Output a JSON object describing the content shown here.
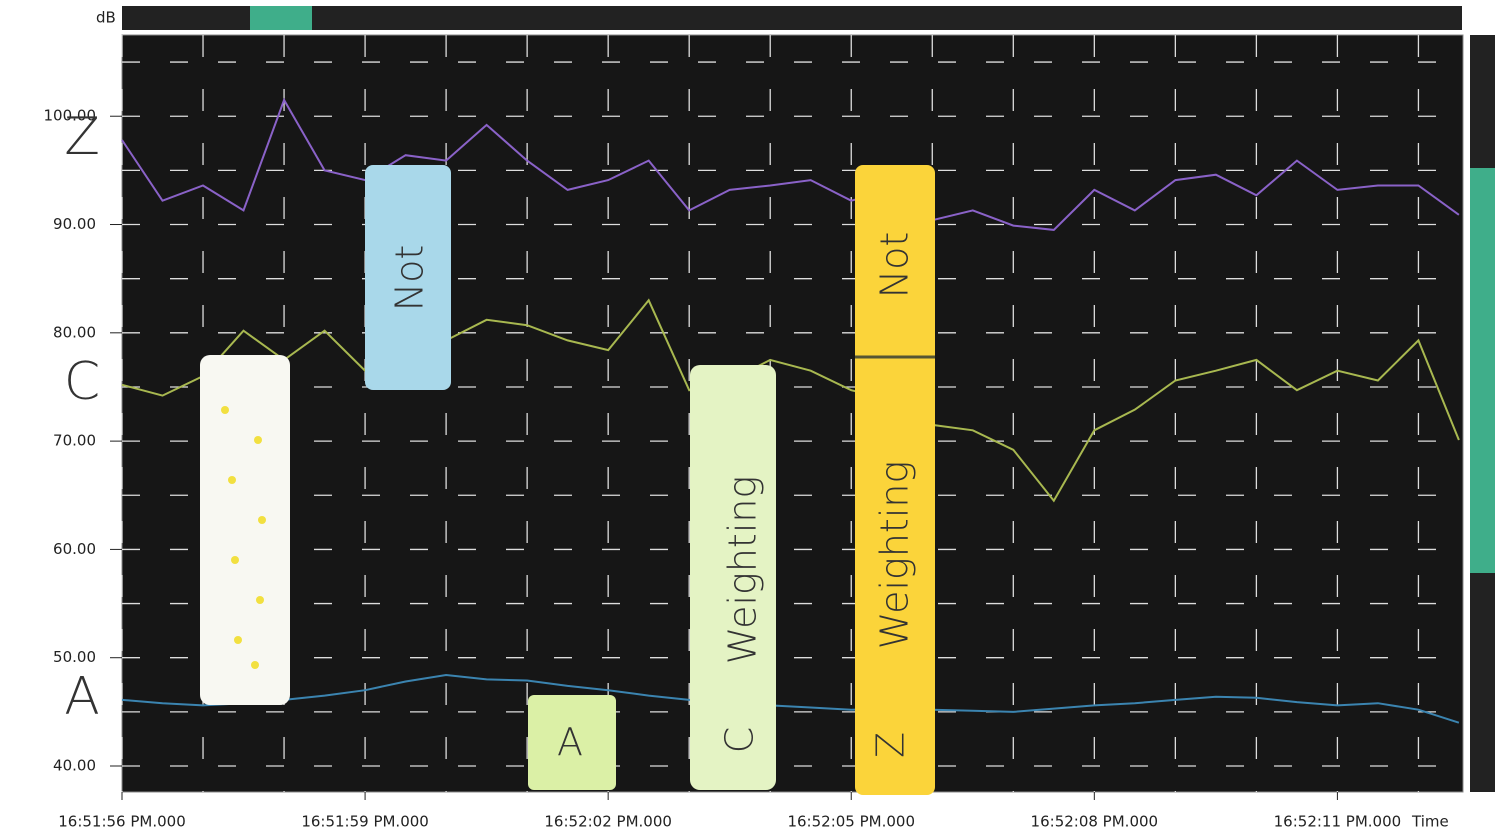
{
  "chart_data": {
    "type": "line",
    "y_label": "dB",
    "x_label": "Time",
    "x": [
      0,
      0.5,
      1,
      1.5,
      2,
      2.5,
      3,
      3.5,
      4,
      4.5,
      5,
      5.5,
      6,
      6.5,
      7,
      7.5,
      8,
      8.5,
      9,
      9.5,
      10,
      10.5,
      11,
      11.5,
      12,
      12.5,
      13,
      13.5,
      14,
      14.5,
      15,
      15.5,
      16,
      16.5
    ],
    "xlim": [
      0,
      16.55
    ],
    "xticks": [
      {
        "value": 0,
        "label": "16:51:56 PM.000"
      },
      {
        "value": 3,
        "label": "16:51:59 PM.000"
      },
      {
        "value": 6,
        "label": "16:52:02 PM.000"
      },
      {
        "value": 9,
        "label": "16:52:05 PM.000"
      },
      {
        "value": 12,
        "label": "16:52:08 PM.000"
      },
      {
        "value": 15,
        "label": "16:52:11 PM.000"
      }
    ],
    "minor_xticks": [
      1,
      2,
      4,
      5,
      7,
      8,
      10,
      11,
      13,
      14,
      16
    ],
    "ylim": [
      37.6,
      107.5
    ],
    "yticks": [
      {
        "value": 40,
        "label": "40.00"
      },
      {
        "value": 50,
        "label": "50.00"
      },
      {
        "value": 60,
        "label": "60.00"
      },
      {
        "value": 70,
        "label": "70.00"
      },
      {
        "value": 80,
        "label": "80.00"
      },
      {
        "value": 90,
        "label": "90.00"
      },
      {
        "value": 100,
        "label": "100.00"
      }
    ],
    "minor_yticks": [
      45,
      55,
      65,
      75,
      85,
      95,
      105
    ],
    "grid": true,
    "series": [
      {
        "name": "Z",
        "color": "#8a62c8",
        "values": [
          97.8,
          92.2,
          93.6,
          91.3,
          101.5,
          95,
          94.1,
          96.4,
          95.9,
          99.2,
          95.9,
          93.2,
          94.1,
          95.9,
          91.3,
          93.2,
          93.6,
          94.1,
          92.2,
          93.2,
          90.4,
          91.3,
          89.9,
          89.5,
          93.2,
          91.3,
          94.1,
          94.6,
          92.7,
          95.9,
          93.2,
          93.6,
          93.6,
          90.9
        ]
      },
      {
        "name": "C",
        "color": "#a8b850",
        "values": [
          75.2,
          74.2,
          76.0,
          80.2,
          77.5,
          80.2,
          76.5,
          77.5,
          79.3,
          81.2,
          80.7,
          79.3,
          78.4,
          83.0,
          74.7,
          75.6,
          77.5,
          76.5,
          74.7,
          73.8,
          71.5,
          71.0,
          69.2,
          64.5,
          71.0,
          72.9,
          75.6,
          76.5,
          77.5,
          74.7,
          76.5,
          75.6,
          79.3,
          70.1
        ]
      },
      {
        "name": "A",
        "color": "#3b84b0",
        "values": [
          46.1,
          45.8,
          45.6,
          45.8,
          46.1,
          46.5,
          47.0,
          47.8,
          48.4,
          48.0,
          47.9,
          47.4,
          47.0,
          46.5,
          46.1,
          45.9,
          45.6,
          45.4,
          45.2,
          45.3,
          45.2,
          45.1,
          45.0,
          45.3,
          45.6,
          45.8,
          46.1,
          46.4,
          46.3,
          45.9,
          45.6,
          45.8,
          45.2,
          44.0
        ]
      }
    ],
    "annotations": [
      "Not",
      "A",
      "Weighting",
      "C",
      "Not",
      "Weighting",
      "Z"
    ]
  }
}
